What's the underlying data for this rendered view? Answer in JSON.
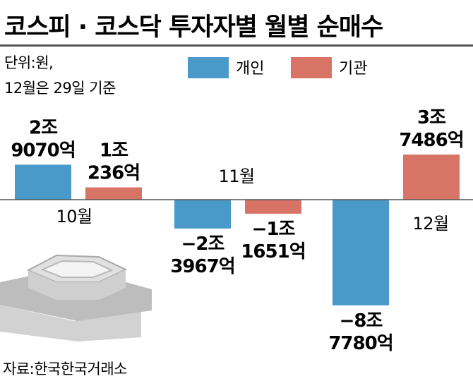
{
  "chart_data": {
    "type": "bar",
    "title": "코스피 · 코스닥 투자자별 월별 순매수",
    "unit_note": "단위:원,",
    "date_note": "12월은 29일 기준",
    "source": "자료:한국한국거래소",
    "categories": [
      "10월",
      "11월",
      "12월"
    ],
    "series": [
      {
        "name": "개인",
        "color": "#4a9ac9",
        "values": [
          29070,
          -23967,
          -87780
        ],
        "labels": [
          [
            "2조",
            "9070억"
          ],
          [
            "−2조",
            "3967억"
          ],
          [
            "−8조",
            "7780억"
          ]
        ]
      },
      {
        "name": "기관",
        "color": "#d87465",
        "values": [
          10236,
          -11651,
          37486
        ],
        "labels": [
          [
            "1조",
            "236억"
          ],
          [
            "−1조",
            "1651억"
          ],
          [
            "3조",
            "7486억"
          ]
        ]
      }
    ]
  }
}
